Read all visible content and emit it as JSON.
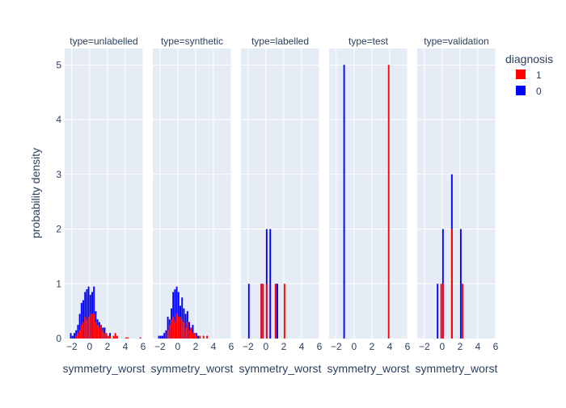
{
  "chart_data": {
    "type": "histogram",
    "barmode": "overlay",
    "title": "",
    "xlabel": "symmetry_worst",
    "ylabel": "probability density",
    "facet_prefix": "type=",
    "xlim": [
      -2.8,
      6.0
    ],
    "ylim": [
      0,
      5.3
    ],
    "x_ticks": [
      -2,
      0,
      2,
      4,
      6
    ],
    "y_ticks": [
      0,
      1,
      2,
      3,
      4,
      5
    ],
    "legend": {
      "title": "diagnosis",
      "placement": "top-right",
      "items": [
        {
          "name": "1",
          "color": "#FF0000"
        },
        {
          "name": "0",
          "color": "#0000FF"
        }
      ]
    },
    "series_colors": {
      "1": "#FF0000",
      "0": "#0000FF"
    },
    "panels": [
      {
        "facet": "unlabelled",
        "bin_width": 0.2,
        "series": [
          {
            "name": "0",
            "bins": [
              [
                -2.2,
                0.1
              ],
              [
                -2.0,
                0.05
              ],
              [
                -1.8,
                0.1
              ],
              [
                -1.6,
                0.15
              ],
              [
                -1.4,
                0.25
              ],
              [
                -1.2,
                0.45
              ],
              [
                -1.0,
                0.65
              ],
              [
                -0.8,
                0.7
              ],
              [
                -0.6,
                0.85
              ],
              [
                -0.4,
                0.9
              ],
              [
                -0.2,
                0.95
              ],
              [
                0.0,
                0.8
              ],
              [
                0.2,
                0.85
              ],
              [
                0.4,
                0.95
              ],
              [
                0.6,
                0.5
              ],
              [
                0.8,
                0.35
              ],
              [
                1.0,
                0.3
              ],
              [
                1.2,
                0.25
              ],
              [
                1.4,
                0.2
              ],
              [
                1.6,
                0.2
              ],
              [
                1.8,
                0.05
              ],
              [
                2.2,
                0.1
              ]
            ]
          },
          {
            "name": "1",
            "bins": [
              [
                -1.6,
                0.05
              ],
              [
                -1.4,
                0.1
              ],
              [
                -1.2,
                0.15
              ],
              [
                -1.0,
                0.25
              ],
              [
                -0.8,
                0.3
              ],
              [
                -0.6,
                0.4
              ],
              [
                -0.4,
                0.35
              ],
              [
                -0.2,
                0.4
              ],
              [
                0.0,
                0.45
              ],
              [
                0.2,
                0.45
              ],
              [
                0.4,
                0.45
              ],
              [
                0.6,
                0.3
              ],
              [
                0.8,
                0.25
              ],
              [
                1.0,
                0.2
              ],
              [
                1.2,
                0.25
              ],
              [
                1.4,
                0.15
              ],
              [
                1.6,
                0.1
              ],
              [
                1.8,
                0.1
              ],
              [
                2.0,
                0.05
              ],
              [
                2.2,
                0.05
              ],
              [
                2.6,
                0.05
              ],
              [
                2.8,
                0.1
              ],
              [
                3.0,
                0.05
              ],
              [
                4.0,
                0.02
              ],
              [
                4.2,
                0.02
              ],
              [
                5.6,
                0.02
              ]
            ]
          }
        ]
      },
      {
        "facet": "synthetic",
        "bin_width": 0.2,
        "series": [
          {
            "name": "0",
            "bins": [
              [
                -2.2,
                0.05
              ],
              [
                -2.0,
                0.05
              ],
              [
                -1.8,
                0.05
              ],
              [
                -1.6,
                0.1
              ],
              [
                -1.4,
                0.15
              ],
              [
                -1.2,
                0.4
              ],
              [
                -1.0,
                0.35
              ],
              [
                -0.8,
                0.55
              ],
              [
                -0.6,
                0.85
              ],
              [
                -0.4,
                0.9
              ],
              [
                -0.2,
                0.95
              ],
              [
                0.0,
                0.85
              ],
              [
                0.2,
                0.6
              ],
              [
                0.4,
                0.75
              ],
              [
                0.6,
                0.55
              ],
              [
                0.8,
                0.45
              ],
              [
                1.0,
                0.5
              ],
              [
                1.2,
                0.3
              ],
              [
                1.4,
                0.2
              ],
              [
                1.6,
                0.25
              ],
              [
                1.8,
                0.1
              ],
              [
                2.0,
                0.1
              ],
              [
                2.2,
                0.05
              ]
            ]
          },
          {
            "name": "1",
            "bins": [
              [
                -1.2,
                0.15
              ],
              [
                -1.0,
                0.25
              ],
              [
                -0.8,
                0.35
              ],
              [
                -0.6,
                0.4
              ],
              [
                -0.4,
                0.3
              ],
              [
                -0.2,
                0.45
              ],
              [
                0.0,
                0.4
              ],
              [
                0.2,
                0.4
              ],
              [
                0.4,
                0.35
              ],
              [
                0.6,
                0.3
              ],
              [
                0.8,
                0.2
              ],
              [
                1.0,
                0.3
              ],
              [
                1.2,
                0.15
              ],
              [
                1.4,
                0.2
              ],
              [
                1.6,
                0.1
              ],
              [
                1.8,
                0.1
              ],
              [
                2.0,
                0.05
              ],
              [
                2.4,
                0.05
              ],
              [
                2.8,
                0.05
              ],
              [
                3.2,
                0.05
              ]
            ]
          }
        ]
      },
      {
        "facet": "labelled",
        "bin_width": 0.2,
        "series": [
          {
            "name": "0",
            "bins": [
              [
                -2.0,
                1
              ],
              [
                -0.6,
                1
              ],
              [
                0.0,
                2
              ],
              [
                0.4,
                2
              ],
              [
                1.0,
                1
              ],
              [
                1.2,
                1
              ]
            ]
          },
          {
            "name": "1",
            "bins": [
              [
                -0.6,
                1
              ],
              [
                -0.4,
                1
              ],
              [
                0.0,
                1
              ],
              [
                1.0,
                1
              ],
              [
                2.0,
                1
              ]
            ]
          }
        ]
      },
      {
        "facet": "test",
        "bin_width": 0.2,
        "series": [
          {
            "name": "0",
            "bins": [
              [
                -1.2,
                5
              ]
            ]
          },
          {
            "name": "1",
            "bins": [
              [
                3.8,
                5
              ]
            ]
          }
        ]
      },
      {
        "facet": "validation",
        "bin_width": 0.2,
        "series": [
          {
            "name": "0",
            "bins": [
              [
                -0.6,
                1
              ],
              [
                0.0,
                2
              ],
              [
                1.0,
                3
              ],
              [
                2.0,
                2
              ]
            ]
          },
          {
            "name": "1",
            "bins": [
              [
                -0.2,
                1
              ],
              [
                0.0,
                1
              ],
              [
                1.0,
                2
              ],
              [
                2.2,
                1
              ]
            ]
          }
        ]
      }
    ]
  }
}
